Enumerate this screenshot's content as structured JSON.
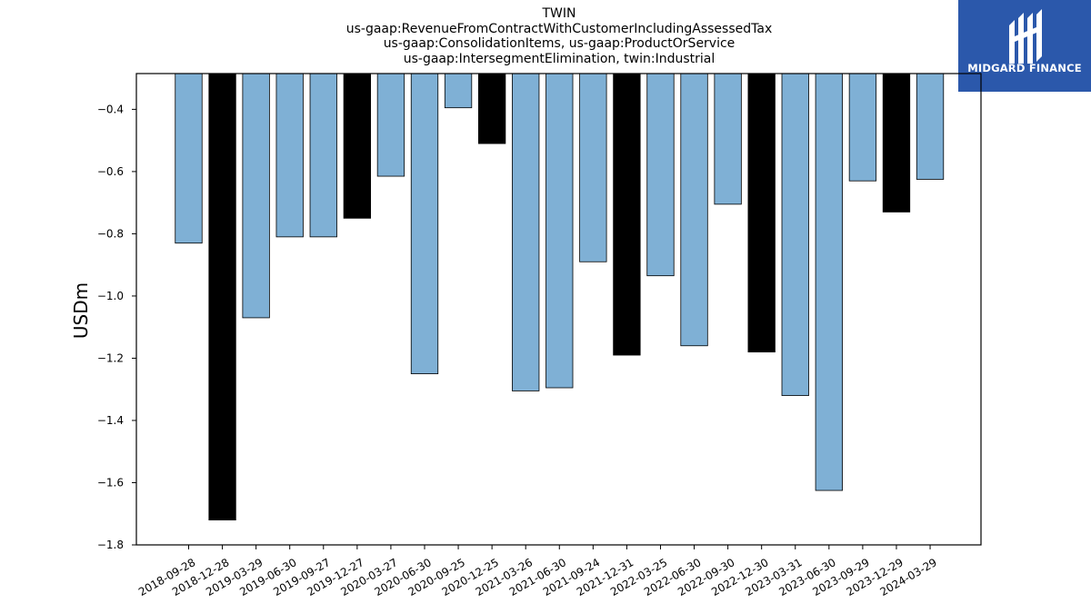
{
  "chart_data": {
    "type": "bar",
    "title_lines": [
      "TWIN",
      "us-gaap:RevenueFromContractWithCustomerIncludingAssessedTax",
      "us-gaap:ConsolidationItems, us-gaap:ProductOrService",
      "us-gaap:IntersegmentElimination, twin:Industrial"
    ],
    "xlabel": "",
    "ylabel": "USDm",
    "ylim": [
      -1.8,
      -0.285
    ],
    "yticks": [
      -0.4,
      -0.6,
      -0.8,
      -1.0,
      -1.2,
      -1.4,
      -1.6,
      -1.8
    ],
    "ytick_labels": [
      "−0.4",
      "−0.6",
      "−0.8",
      "−1.0",
      "−1.2",
      "−1.4",
      "−1.6",
      "−1.8"
    ],
    "categories": [
      "2018-09-28",
      "2018-12-28",
      "2019-03-29",
      "2019-06-30",
      "2019-09-27",
      "2019-12-27",
      "2020-03-27",
      "2020-06-30",
      "2020-09-25",
      "2020-12-25",
      "2021-03-26",
      "2021-06-30",
      "2021-09-24",
      "2021-12-31",
      "2022-03-25",
      "2022-06-30",
      "2022-09-30",
      "2022-12-30",
      "2023-03-31",
      "2023-06-30",
      "2023-09-29",
      "2023-12-29",
      "2024-03-29"
    ],
    "values": [
      -0.83,
      -1.72,
      -1.07,
      -0.81,
      -0.81,
      -0.75,
      -0.615,
      -1.25,
      -0.395,
      -0.51,
      -1.305,
      -1.295,
      -0.89,
      -1.19,
      -0.935,
      -1.16,
      -0.705,
      -1.18,
      -1.32,
      -1.625,
      -0.63,
      -0.73,
      -0.625
    ],
    "colors": [
      "#7fb0d5",
      "#000000",
      "#7fb0d5",
      "#7fb0d5",
      "#7fb0d5",
      "#000000",
      "#7fb0d5",
      "#7fb0d5",
      "#7fb0d5",
      "#000000",
      "#7fb0d5",
      "#7fb0d5",
      "#7fb0d5",
      "#000000",
      "#7fb0d5",
      "#7fb0d5",
      "#7fb0d5",
      "#000000",
      "#7fb0d5",
      "#7fb0d5",
      "#7fb0d5",
      "#000000",
      "#7fb0d5"
    ],
    "grid": false,
    "legend": "none"
  },
  "logo": {
    "text": "MIDGARD FINANCE",
    "background": "#2b58ab"
  }
}
